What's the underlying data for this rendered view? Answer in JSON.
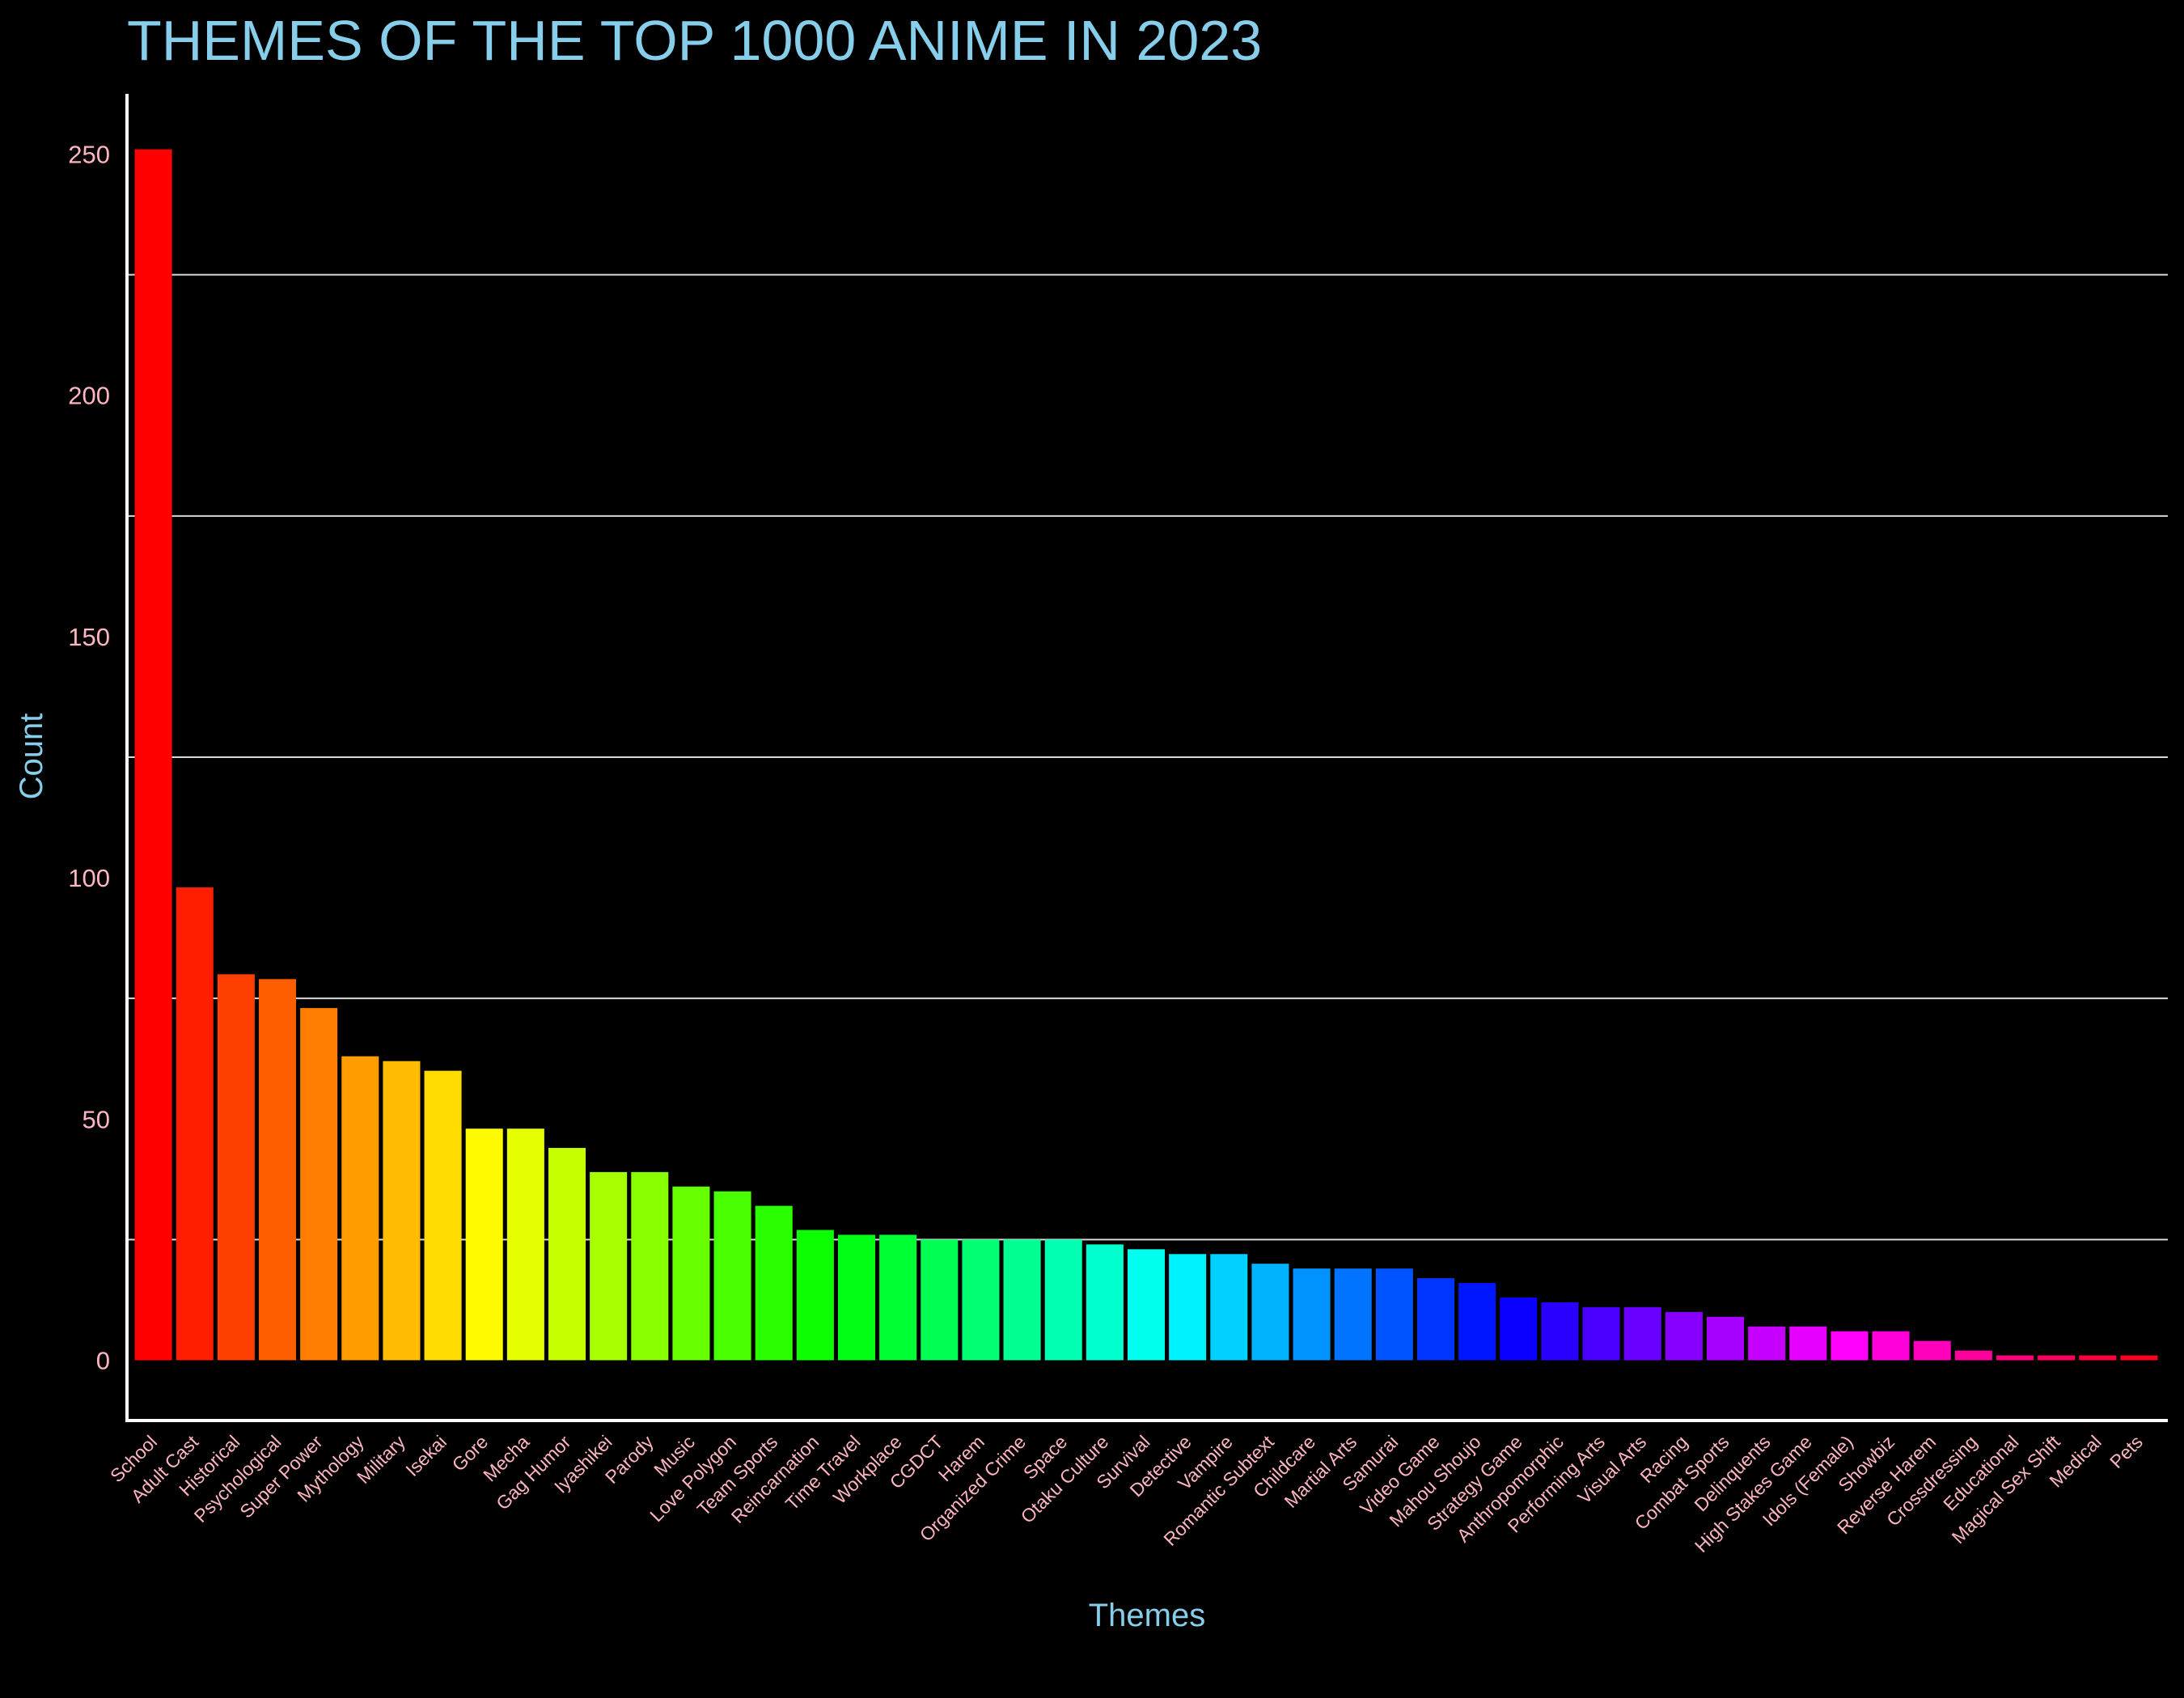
{
  "chart_data": {
    "type": "bar",
    "title": "THEMES OF THE TOP 1000 ANIME IN 2023",
    "xlabel": "Themes",
    "ylabel": "Count",
    "ylim": [
      -12.5,
      262.5
    ],
    "yticks": [
      0,
      50,
      100,
      150,
      200,
      250
    ],
    "grid": "horizontal",
    "categories": [
      "School",
      "Adult Cast",
      "Historical",
      "Psychological",
      "Super Power",
      "Mythology",
      "Military",
      "Isekai",
      "Gore",
      "Mecha",
      "Gag Humor",
      "Iyashikei",
      "Parody",
      "Music",
      "Love Polygon",
      "Team Sports",
      "Reincarnation",
      "Time Travel",
      "Workplace",
      "CGDCT",
      "Harem",
      "Organized Crime",
      "Space",
      "Otaku Culture",
      "Survival",
      "Detective",
      "Vampire",
      "Romantic Subtext",
      "Childcare",
      "Martial Arts",
      "Samurai",
      "Video Game",
      "Mahou Shoujo",
      "Strategy Game",
      "Anthropomorphic",
      "Performing Arts",
      "Visual Arts",
      "Racing",
      "Combat Sports",
      "Delinquents",
      "High Stakes Game",
      "Idols (Female)",
      "Showbiz",
      "Reverse Harem",
      "Crossdressing",
      "Educational",
      "Magical Sex Shift",
      "Medical",
      "Pets"
    ],
    "values": [
      251,
      98,
      80,
      79,
      73,
      63,
      62,
      60,
      48,
      48,
      44,
      39,
      39,
      36,
      35,
      32,
      27,
      26,
      26,
      25,
      25,
      25,
      25,
      24,
      23,
      22,
      22,
      20,
      19,
      19,
      19,
      17,
      16,
      13,
      12,
      11,
      11,
      10,
      9,
      7,
      7,
      6,
      6,
      4,
      2,
      1,
      1,
      1,
      1
    ],
    "colors": [
      "#ff0000",
      "#ff1f00",
      "#ff3f00",
      "#ff5e00",
      "#ff7d00",
      "#ff9c00",
      "#ffbc00",
      "#ffdb00",
      "#fffa00",
      "#e5ff00",
      "#c6ff00",
      "#a7ff00",
      "#88ff00",
      "#68ff00",
      "#49ff00",
      "#2aff00",
      "#0bff00",
      "#00ff14",
      "#00ff33",
      "#00ff52",
      "#00ff71",
      "#00ff91",
      "#00ffb0",
      "#00ffcf",
      "#00ffef",
      "#00f1ff",
      "#00d1ff",
      "#00b2ff",
      "#0093ff",
      "#0074ff",
      "#0054ff",
      "#0035ff",
      "#0016ff",
      "#0a00ff",
      "#2900ff",
      "#4900ff",
      "#6800ff",
      "#8700ff",
      "#a600ff",
      "#c600ff",
      "#e500ff",
      "#ff00fa",
      "#ff00db",
      "#ff00bc",
      "#ff009c",
      "#ff007d",
      "#ff005e",
      "#ff003f",
      "#ff001f"
    ],
    "background": "#000000",
    "title_color": "#87ceeb",
    "tick_color": "#ffb6c1",
    "axis_color": "#ffffff"
  }
}
